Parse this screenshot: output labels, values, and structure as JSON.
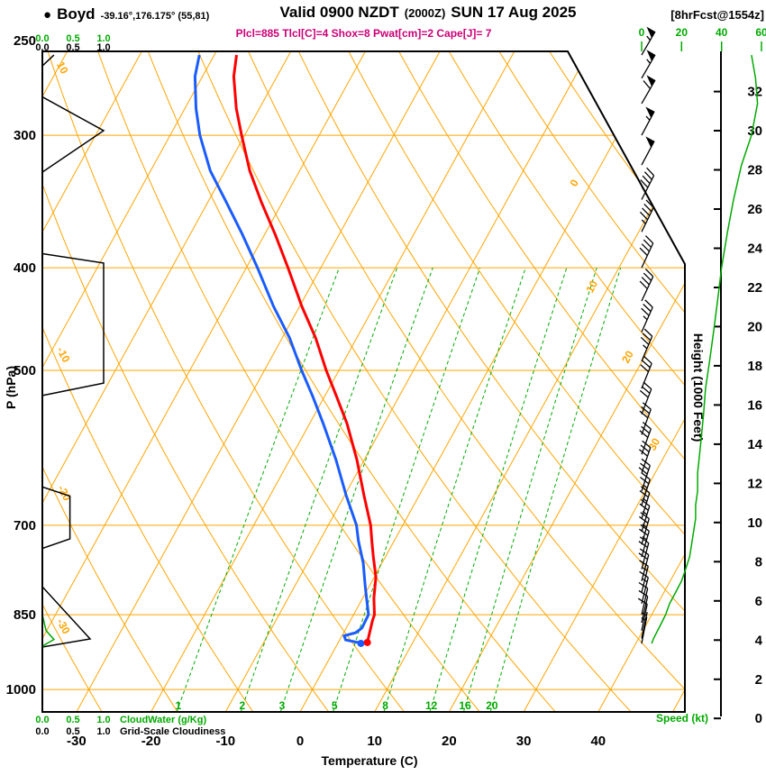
{
  "header": {
    "bullet": "●",
    "station": "Boyd",
    "coords": "-39.16°,176.175° (55,81)",
    "valid_prefix": "Valid 0900 NZDT",
    "valid_zulu": "(2000Z)",
    "valid_date": "SUN 17 Aug 2025",
    "fcst_tag": "[8hrFcst@1554z]",
    "params_line": "Plcl=885 Tlcl[C]=4 Shox=8 Pwat[cm]=2 Cape[J]= 7"
  },
  "axis_labels": {
    "pressure": "P (hPa)",
    "temperature": "Temperature (C)",
    "height": "Height (1000 Feet)",
    "speed": "Speed (kt)",
    "cloudwater": "CloudWater (g/Kg)",
    "cloudiness": "Grid-Scale Cloudiness"
  },
  "scales": {
    "cloud_scale_labels": [
      "0.0",
      "0.5",
      "1.0"
    ],
    "speed_scale_labels": [
      "0",
      "20",
      "40",
      "60"
    ],
    "speed_scale_values": [
      0,
      20,
      40,
      60
    ]
  },
  "colors": {
    "grid_orange": "#ffa500",
    "mixing_green": "#00aa00",
    "profile_red": "#ff0000",
    "profile_blue": "#1a5cff",
    "cloud_green": "#00aa00",
    "speed_green": "#00aa00",
    "params_magenta": "#cc0077",
    "black": "#000000"
  },
  "chart_data": {
    "type": "line",
    "title": "Skew-T Log-P forecast sounding, Boyd NZ, valid 0900 NZDT SUN 17 Aug 2025",
    "pressure_axis": {
      "unit": "hPa",
      "range": [
        250,
        1050
      ],
      "ticks": [
        250,
        300,
        400,
        500,
        700,
        850,
        1000
      ]
    },
    "temperature_axis": {
      "unit": "C",
      "ticks": [
        -30,
        -20,
        -10,
        0,
        10,
        20,
        30,
        40
      ]
    },
    "height_axis": {
      "unit": "1000 Feet",
      "ticks": [
        0,
        2,
        4,
        6,
        8,
        10,
        12,
        14,
        16,
        18,
        20,
        22,
        24,
        26,
        28,
        30,
        32
      ]
    },
    "isotherm_step": 10,
    "isotherm_labels": [
      0,
      10,
      20,
      30
    ],
    "dry_adiabat_labels": [
      -30,
      -20,
      -10,
      10
    ],
    "mixing_ratio_lines": [
      1,
      2,
      3,
      5,
      8,
      12,
      16,
      20
    ],
    "surface_point": {
      "p": 903,
      "t": 3.9,
      "td": 3.4
    },
    "series": [
      {
        "name": "temperature",
        "unit": "C vs hPa",
        "points": [
          [
            903,
            3.9
          ],
          [
            880,
            3.4
          ],
          [
            862,
            3.0
          ],
          [
            850,
            2.8
          ],
          [
            820,
            1.5
          ],
          [
            783,
            0.2
          ],
          [
            750,
            -1.6
          ],
          [
            724,
            -3.0
          ],
          [
            700,
            -4.3
          ],
          [
            656,
            -7.4
          ],
          [
            607,
            -11.0
          ],
          [
            561,
            -15.0
          ],
          [
            529,
            -18.4
          ],
          [
            500,
            -21.7
          ],
          [
            466,
            -25.5
          ],
          [
            435,
            -29.7
          ],
          [
            400,
            -34.4
          ],
          [
            372,
            -38.6
          ],
          [
            347,
            -42.8
          ],
          [
            324,
            -46.7
          ],
          [
            300,
            -50.4
          ],
          [
            283,
            -53.1
          ],
          [
            264,
            -55.8
          ],
          [
            252,
            -57.0
          ]
        ]
      },
      {
        "name": "dewpoint",
        "unit": "C vs hPa",
        "points": [
          [
            905,
            3.4
          ],
          [
            898,
            0.8
          ],
          [
            890,
            0.3
          ],
          [
            884,
            1.6
          ],
          [
            875,
            2.1
          ],
          [
            850,
            2.0
          ],
          [
            800,
            -0.5
          ],
          [
            760,
            -2.5
          ],
          [
            724,
            -4.8
          ],
          [
            700,
            -6.2
          ],
          [
            656,
            -9.8
          ],
          [
            607,
            -13.8
          ],
          [
            561,
            -18.2
          ],
          [
            529,
            -21.6
          ],
          [
            500,
            -25.0
          ],
          [
            466,
            -29.0
          ],
          [
            435,
            -33.5
          ],
          [
            400,
            -38.5
          ],
          [
            372,
            -43.0
          ],
          [
            347,
            -47.5
          ],
          [
            324,
            -52.0
          ],
          [
            300,
            -56.0
          ],
          [
            283,
            -58.5
          ],
          [
            264,
            -61.0
          ],
          [
            252,
            -62.0
          ]
        ]
      },
      {
        "name": "grid_scale_cloudiness",
        "unit": "fraction 0-1 vs hPa",
        "points": [
          [
            252,
            0.19
          ],
          [
            258,
            0.0
          ],
          [
            276,
            0.0
          ],
          [
            297,
            1.0
          ],
          [
            325,
            0.0
          ],
          [
            388,
            0.0
          ],
          [
            396,
            1.0
          ],
          [
            514,
            1.0
          ],
          [
            528,
            0.0
          ],
          [
            644,
            0.0
          ],
          [
            657,
            0.45
          ],
          [
            721,
            0.45
          ],
          [
            736,
            0.0
          ],
          [
            800,
            0.0
          ],
          [
            896,
            0.78
          ],
          [
            912,
            0.0
          ],
          [
            1050,
            0.0
          ]
        ]
      },
      {
        "name": "cloud_water",
        "unit": "g/Kg vs hPa",
        "points": [
          [
            850,
            0.0
          ],
          [
            880,
            0.06
          ],
          [
            897,
            0.19
          ],
          [
            908,
            0.03
          ],
          [
            915,
            0.0
          ],
          [
            1050,
            0.0
          ]
        ]
      },
      {
        "name": "wind",
        "unit": "hPa, knots, direction-from degrees",
        "points": [
          [
            252,
            55,
            30
          ],
          [
            265,
            57,
            30
          ],
          [
            280,
            58,
            30
          ],
          [
            300,
            55,
            28
          ],
          [
            320,
            50,
            28
          ],
          [
            345,
            46,
            27
          ],
          [
            370,
            43,
            26
          ],
          [
            400,
            40,
            25
          ],
          [
            430,
            38,
            25
          ],
          [
            460,
            36,
            24
          ],
          [
            490,
            34,
            23
          ],
          [
            520,
            32,
            22
          ],
          [
            550,
            31,
            21
          ],
          [
            575,
            30,
            20
          ],
          [
            600,
            29,
            20
          ],
          [
            625,
            28,
            19
          ],
          [
            650,
            28,
            18
          ],
          [
            670,
            27,
            18
          ],
          [
            690,
            27,
            17
          ],
          [
            710,
            26,
            17
          ],
          [
            730,
            25,
            16
          ],
          [
            750,
            24,
            16
          ],
          [
            770,
            22,
            15
          ],
          [
            790,
            20,
            15
          ],
          [
            810,
            17,
            14
          ],
          [
            830,
            14,
            14
          ],
          [
            850,
            12,
            13
          ],
          [
            865,
            10,
            13
          ],
          [
            880,
            8,
            12
          ],
          [
            895,
            6,
            12
          ],
          [
            905,
            5,
            11
          ]
        ]
      }
    ]
  }
}
